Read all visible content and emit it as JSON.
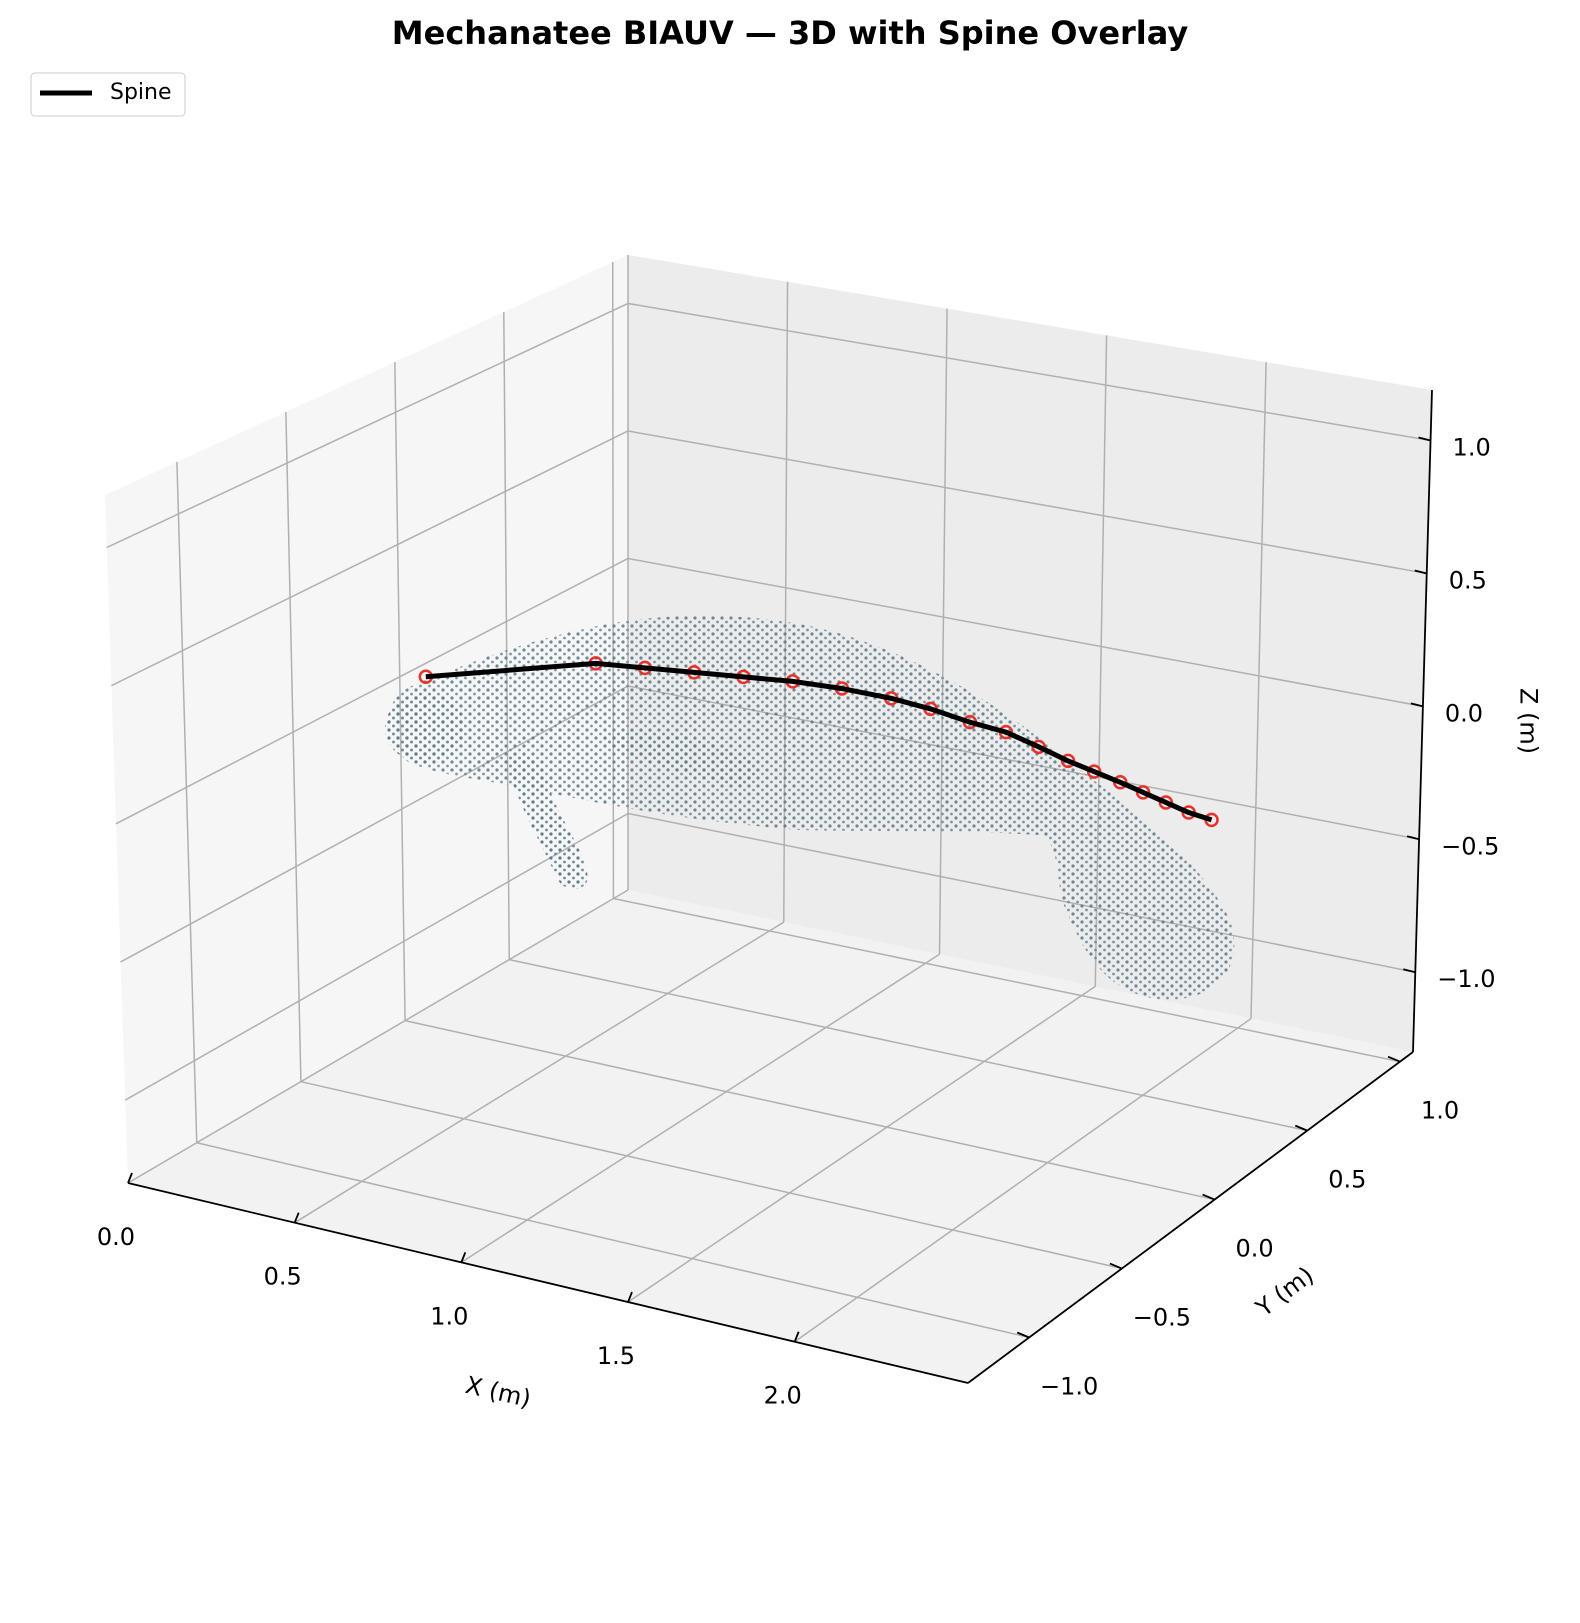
{
  "chart_data": {
    "type": "line3d",
    "title": "Mechanatee BIAUV — 3D with Spine Overlay",
    "xlabel": "X (m)",
    "ylabel": "Y (m)",
    "zlabel": "Z (m)",
    "xlim": [
      0,
      2.52
    ],
    "ylim": [
      -1.33,
      1.07
    ],
    "zlim": [
      -1.3,
      1.19
    ],
    "xticks": [
      {
        "value": 0,
        "label": "0.0"
      },
      0.5,
      {
        "value": 1,
        "label": "1.0"
      },
      1.5,
      {
        "value": 2,
        "label": "2.0"
      }
    ],
    "yticks": [
      {
        "value": -1,
        "label": "−1.0"
      },
      {
        "value": -0.5,
        "label": "−0.5"
      },
      {
        "value": 0,
        "label": "0.0"
      },
      0.5,
      {
        "value": 1,
        "label": "1.0"
      }
    ],
    "zticks": [
      {
        "value": -1,
        "label": "−1.0"
      },
      {
        "value": -0.5,
        "label": "−0.5"
      },
      {
        "value": 0,
        "label": "0.0"
      },
      0.5,
      {
        "value": 1,
        "label": "1.0"
      }
    ],
    "grid": true,
    "legend": "upper left",
    "series": [
      {
        "name": "Spine",
        "color": "#000000",
        "marker_color": "#e8312a",
        "x": [
          0.08,
          0.6,
          0.75,
          0.9,
          1.05,
          1.2,
          1.35,
          1.5,
          1.62,
          1.74,
          1.85,
          1.95,
          2.04,
          2.12,
          2.2,
          2.27,
          2.34,
          2.41,
          2.48
        ],
        "y": [
          0,
          0,
          0,
          0,
          0,
          0,
          0,
          0,
          0,
          0,
          0,
          0,
          0,
          0,
          0,
          0,
          0,
          0,
          0
        ],
        "z": [
          0.02,
          0.2,
          0.22,
          0.24,
          0.26,
          0.28,
          0.29,
          0.29,
          0.28,
          0.26,
          0.25,
          0.22,
          0.19,
          0.17,
          0.15,
          0.13,
          0.11,
          0.09,
          0.08
        ]
      }
    ]
  }
}
